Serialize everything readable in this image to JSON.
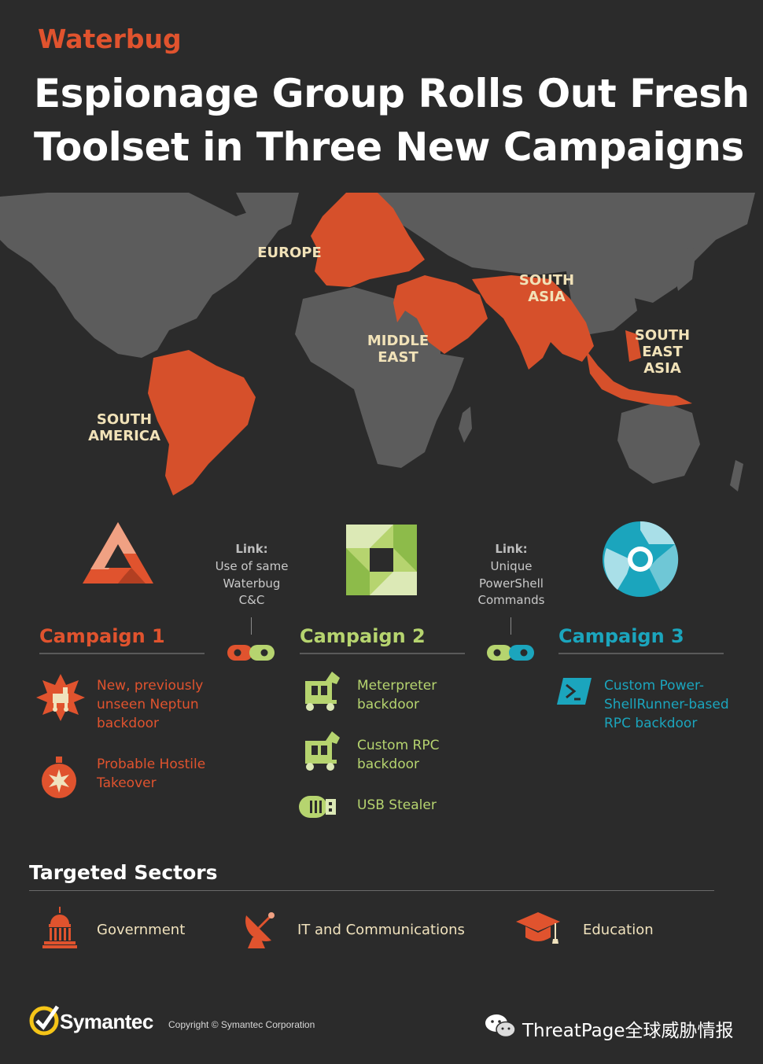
{
  "header": {
    "kicker": "Waterbug",
    "title_line1": "Espionage Group Rolls Out Fresh",
    "title_line2": "Toolset in Three New Campaigns"
  },
  "map": {
    "regions": [
      {
        "l1": "EUROPE",
        "l2": "",
        "l3": ""
      },
      {
        "l1": "SOUTH",
        "l2": "ASIA",
        "l3": ""
      },
      {
        "l1": "MIDDLE",
        "l2": "EAST",
        "l3": ""
      },
      {
        "l1": "SOUTH",
        "l2": "EAST",
        "l3": "ASIA"
      },
      {
        "l1": "SOUTH",
        "l2": "AMERICA",
        "l3": ""
      }
    ]
  },
  "links": [
    {
      "head": "Link:",
      "l1": "Use of same",
      "l2": "Waterbug",
      "l3": "C&C"
    },
    {
      "head": "Link:",
      "l1": "Unique",
      "l2": "PowerShell",
      "l3": "Commands"
    }
  ],
  "campaigns": [
    {
      "title": "Campaign 1",
      "color": "#e0532e",
      "items": [
        {
          "icon": "trojan-horse-burst-icon",
          "l1": "New, previously",
          "l2": "unseen Neptun",
          "l3": "backdoor"
        },
        {
          "icon": "grenade-icon",
          "l1": "Probable Hostile",
          "l2": "Takeover",
          "l3": ""
        }
      ]
    },
    {
      "title": "Campaign 2",
      "color": "#b6d46f",
      "items": [
        {
          "icon": "trojan-horse-icon",
          "l1": "Meterpreter",
          "l2": "backdoor"
        },
        {
          "icon": "trojan-horse-icon",
          "l1": "Custom RPC",
          "l2": "backdoor"
        },
        {
          "icon": "usb-stick-icon",
          "l1": "USB Stealer",
          "l2": ""
        }
      ]
    },
    {
      "title": "Campaign 3",
      "color": "#1ba5bd",
      "items": [
        {
          "icon": "powershell-icon",
          "l1": "Custom Power-",
          "l2": "ShellRunner-based",
          "l3": "RPC backdoor"
        }
      ]
    }
  ],
  "sectors": {
    "heading": "Targeted Sectors",
    "items": [
      {
        "label": "Government",
        "icon": "capitol-building-icon"
      },
      {
        "label": "IT and Communications",
        "icon": "satellite-dish-icon"
      },
      {
        "label": "Education",
        "icon": "graduation-cap-icon"
      }
    ]
  },
  "footer": {
    "brand": "Symantec",
    "copyright": "Copyright © Symantec Corporation",
    "wechat": "ThreatPage全球威胁情报"
  },
  "colors": {
    "background": "#2b2b2b",
    "land": "#5c5c5c",
    "highlight": "#d6502b",
    "campaign1": "#e0532e",
    "campaign2": "#b6d46f",
    "campaign3": "#1ba5bd",
    "label": "#f1e2b8"
  }
}
